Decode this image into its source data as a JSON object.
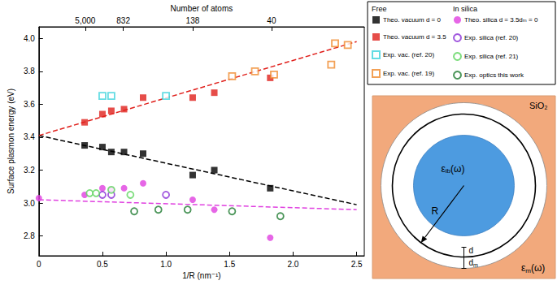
{
  "chart_data": {
    "type": "scatter",
    "xlabel": "1/R (nm⁻¹)",
    "ylabel": "Surface plasmon energy (eV)",
    "x2label": "Number of atoms",
    "xlim": [
      0,
      2.56
    ],
    "xticks": [
      0,
      0.5,
      {
        "value": 1,
        "label": "1.0"
      },
      1.5,
      {
        "value": 2,
        "label": "2.0"
      },
      2.5
    ],
    "x2ticks": [
      {
        "value": 0.365,
        "label": "5,000"
      },
      {
        "value": 0.664,
        "label": "832"
      },
      {
        "value": 1.21,
        "label": "138"
      },
      {
        "value": 1.83,
        "label": "40"
      }
    ],
    "ylim": [
      2.68,
      4.07
    ],
    "yticks": [
      2.8,
      {
        "value": 3,
        "label": "3.0"
      },
      3.2,
      3.4,
      3.6,
      3.8,
      {
        "value": 4,
        "label": "4.0"
      }
    ],
    "grid": false,
    "series": [
      {
        "type": "line",
        "line_style": "dashed",
        "color": "#000000",
        "x": [
          0,
          2.5
        ],
        "values": [
          3.41,
          2.99
        ]
      },
      {
        "type": "line",
        "line_style": "dashed",
        "color": "#e0201c",
        "x": [
          0,
          2.5
        ],
        "values": [
          3.41,
          3.98
        ]
      },
      {
        "type": "line",
        "line_style": "dashed",
        "color": "#e040e0",
        "x": [
          0,
          2.5
        ],
        "values": [
          3.02,
          2.96
        ]
      },
      {
        "name": "Theo. vacuum d = 0",
        "group": "Free",
        "marker": "square",
        "color": "#000000",
        "x": [
          0.36,
          0.5,
          0.57,
          0.67,
          0.82,
          1.21,
          1.38,
          1.82
        ],
        "values": [
          3.35,
          3.34,
          3.31,
          3.31,
          3.3,
          3.17,
          3.2,
          3.09
        ]
      },
      {
        "name": "Theo. vacuum d = 3.5",
        "group": "Free",
        "marker": "square",
        "color": "#e0201c",
        "x": [
          0.36,
          0.5,
          0.57,
          0.67,
          0.82,
          1.21,
          1.38,
          1.82
        ],
        "values": [
          3.49,
          3.54,
          3.56,
          3.57,
          3.64,
          3.64,
          3.67,
          3.76
        ]
      },
      {
        "name": "Exp. vac. (ref. 20)",
        "group": "Free",
        "marker": "square_open",
        "color": "#3fd3dc",
        "x": [
          0.5,
          0.57,
          1.0
        ],
        "values": [
          3.65,
          3.65,
          3.65
        ]
      },
      {
        "name": "Exp. vac. (ref. 19)",
        "group": "Free",
        "marker": "square_open",
        "color": "#f0892c",
        "x": [
          1.52,
          1.7,
          1.85,
          2.3,
          2.33,
          2.43
        ],
        "values": [
          3.77,
          3.8,
          3.78,
          3.84,
          3.97,
          3.96
        ]
      },
      {
        "name": "Theo. silica d = 3.5dₘ = 0",
        "group": "In silica",
        "marker": "circle",
        "color": "#e040e0",
        "x": [
          0,
          0.36,
          0.5,
          0.57,
          0.67,
          0.82,
          1.21,
          1.38,
          1.82
        ],
        "values": [
          3.03,
          3.05,
          3.09,
          3.08,
          3.09,
          3.12,
          3.02,
          2.96,
          2.79
        ]
      },
      {
        "name": "Exp. silica (ref. 20)",
        "group": "In silica",
        "marker": "circle_open",
        "color": "#8a2fd6",
        "x": [
          0.5,
          0.57,
          1.0
        ],
        "values": [
          3.05,
          3.05,
          3.05
        ]
      },
      {
        "name": "Exp. silica (ref. 21)",
        "group": "In silica",
        "marker": "circle_open",
        "color": "#5ed45e",
        "x": [
          0.4,
          0.45,
          0.57,
          0.72
        ],
        "values": [
          3.06,
          3.06,
          3.08,
          3.05
        ]
      },
      {
        "name": "Exp. optics this work",
        "group": "In silica",
        "marker": "circle_open",
        "color": "#1e7a30",
        "x": [
          0.75,
          0.94,
          1.17,
          1.52,
          1.9
        ],
        "values": [
          2.95,
          2.96,
          2.96,
          2.95,
          2.92
        ]
      }
    ]
  },
  "diagram": {
    "medium_label": "SiO₂",
    "core_label": {
      "main": "ε",
      "sub": "ib",
      "rest": "(ω)"
    },
    "medium_permittivity": {
      "main": "ε",
      "sub": "m",
      "rest": "(ω)"
    },
    "radius_label": "R",
    "gap_label": "d",
    "shell_label": {
      "main": "d",
      "sub": "m"
    }
  }
}
